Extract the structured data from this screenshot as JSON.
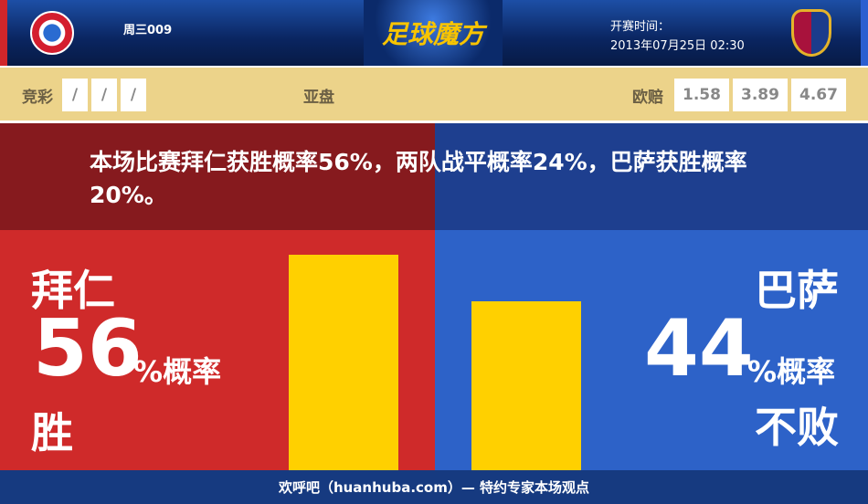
{
  "header": {
    "match_code": "周三009",
    "logo_text": "足球魔方",
    "kickoff_label": "开赛时间：",
    "kickoff_time": "2013年07月25日 02:30",
    "home_logo": "FC BAYERN MÜNCHEN",
    "away_logo": "FCB"
  },
  "odds": {
    "jingcai_label": "竞彩",
    "jingcai": [
      "/",
      "/",
      "/"
    ],
    "yapan_label": "亚盘",
    "ouzhou_label": "欧赔",
    "ouzhou": [
      "1.58",
      "3.89",
      "4.67"
    ]
  },
  "summary": "本场比赛拜仁获胜概率56%，两队战平概率24%，巴萨获胜概率20%。",
  "home": {
    "name": "拜仁",
    "value": "56",
    "unit": "%概率",
    "outcome": "胜",
    "percent": 56,
    "bar_color": "#ffd000"
  },
  "away": {
    "name": "巴萨",
    "value": "44",
    "unit": "%概率",
    "outcome": "不败",
    "percent": 44,
    "bar_color": "#ffd000"
  },
  "footer": "欢呼吧（huanhuba.com）— 特约专家本场观点",
  "colors": {
    "home": "#cf2a2a",
    "away": "#2d62c8",
    "header": "#0a2560",
    "odds_bar": "#ecd38a"
  }
}
